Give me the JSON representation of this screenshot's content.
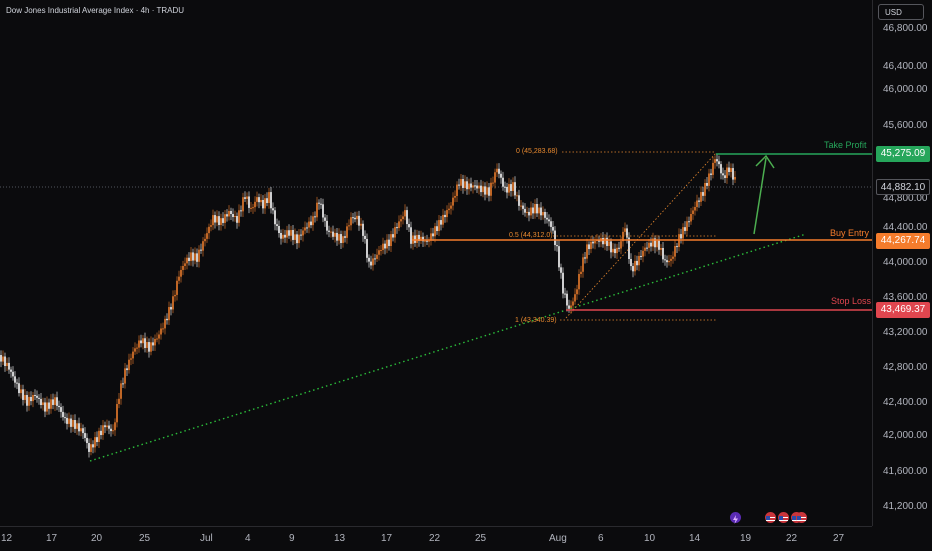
{
  "header": {
    "title": "Dow Jones Industrial Average Index · 4h · TRADU",
    "currency": "USD"
  },
  "price_axis": {
    "ticks": [
      "46,800.00",
      "46,400.00",
      "46,000.00",
      "45,600.00",
      "44,800.00",
      "44,400.00",
      "44,000.00",
      "43,600.00",
      "43,200.00",
      "42,800.00",
      "42,400.00",
      "42,000.00",
      "41,600.00",
      "41,200.00"
    ],
    "current_price": "44,882.10"
  },
  "time_axis": {
    "labels": [
      "12",
      "17",
      "20",
      "25",
      "Jul",
      "4",
      "9",
      "13",
      "17",
      "22",
      "25",
      "Aug",
      "6",
      "10",
      "14",
      "19",
      "22",
      "27"
    ]
  },
  "levels": {
    "take_profit": {
      "label": "Take Profit",
      "price": "45,275.09",
      "color": "#26a65b"
    },
    "buy_entry": {
      "label": "Buy Entry",
      "price": "44,267.74",
      "color": "#f57c2c"
    },
    "stop_loss": {
      "label": "Stop Loss",
      "price": "43,469.37",
      "color": "#e0464f"
    }
  },
  "fib": {
    "level_0": "0 (45,283.68)",
    "level_05": "0.5 (44,312.0)",
    "level_1": "1 (43,340.39)"
  },
  "colors": {
    "background": "#0b0b0d",
    "candle_up": "#ec7d2c",
    "candle_down": "#ffffff",
    "trendline": "#2bbd3b",
    "arrow": "#4caf50"
  },
  "icons": [
    "lightning-icon",
    "us-flag-icon",
    "us-flag-icon",
    "us-flag-icon",
    "us-flag-icon"
  ]
}
